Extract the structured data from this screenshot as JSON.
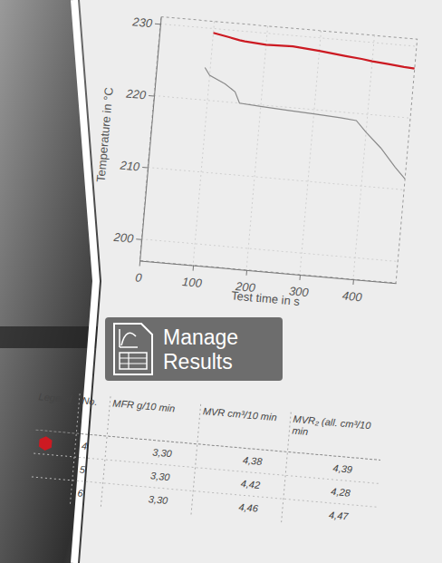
{
  "chart_data": {
    "type": "line",
    "y_label": "Temperature in °C",
    "x_label": "Test time in s",
    "x": [
      90,
      100,
      130,
      150,
      160,
      200,
      250,
      300,
      350,
      380,
      400,
      430,
      460,
      480
    ],
    "series": [
      {
        "color": "#cc1a22",
        "values": [
          null,
          229.4,
          229,
          228.7,
          228.6,
          228.4,
          228.5,
          228.2,
          227.8,
          227.6,
          227.4,
          227.2,
          227,
          226.9
        ]
      },
      {
        "color": "#8a8a8a",
        "values": [
          224.5,
          223.5,
          222.5,
          221.5,
          220,
          219.8,
          219.6,
          219.4,
          219.2,
          219,
          217.5,
          215.5,
          213,
          211.5
        ]
      }
    ],
    "xlim": [
      0,
      480
    ],
    "xticks": [
      0,
      100,
      200,
      300,
      400
    ],
    "ylim": [
      197,
      231
    ],
    "yticks": [
      200,
      210,
      220,
      230
    ],
    "grid": true
  },
  "table": {
    "columns": [
      "Legend",
      "No.",
      "MFR g/10 min",
      "MVR cm³/10 min",
      "MVR₂ (all. cm³/10 min"
    ],
    "rows": [
      [
        null,
        "4",
        "3,30",
        "4,38",
        "4,39"
      ],
      [
        null,
        "5",
        "3,30",
        "4,42",
        "4,28"
      ],
      [
        null,
        "6",
        "3,30",
        "4,46",
        "4,47"
      ]
    ]
  },
  "overlay": {
    "lines": [
      "Manage",
      "Results"
    ]
  }
}
